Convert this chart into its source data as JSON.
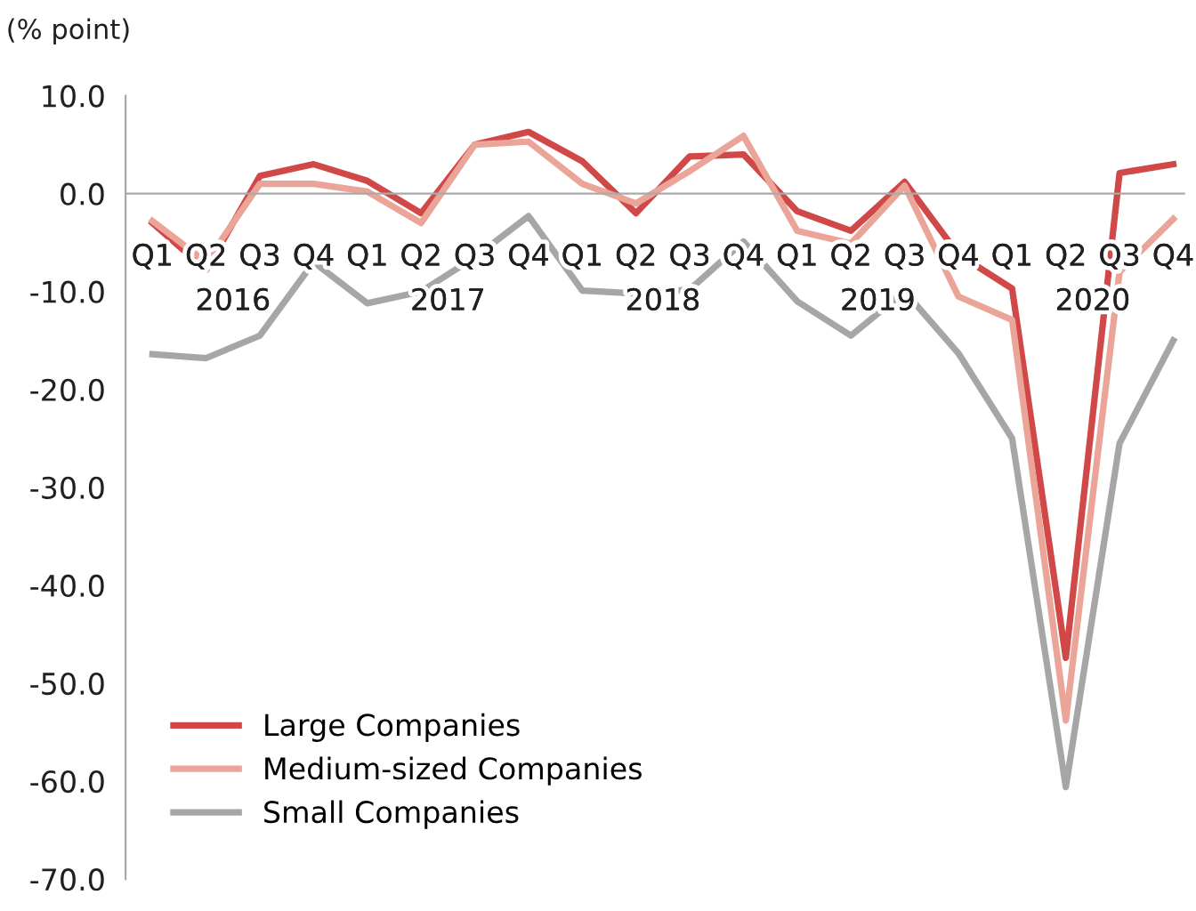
{
  "chart_data": {
    "type": "line",
    "ylabel": "(% point)",
    "categories": [
      "Q1",
      "Q2",
      "Q3",
      "Q4",
      "Q1",
      "Q2",
      "Q3",
      "Q4",
      "Q1",
      "Q2",
      "Q3",
      "Q4",
      "Q1",
      "Q2",
      "Q3",
      "Q4",
      "Q1",
      "Q2",
      "Q3",
      "Q4"
    ],
    "annotations": [
      "2016",
      "2017",
      "2018",
      "2019",
      "2020"
    ],
    "series": [
      {
        "name": "Large Companies",
        "color": "#d04848",
        "values": [
          -3.0,
          -7.8,
          1.8,
          3.0,
          1.3,
          -2.0,
          5.0,
          6.3,
          3.3,
          -2.0,
          3.8,
          4.0,
          -1.8,
          -3.8,
          1.2,
          -6.2,
          -9.7,
          -47.4,
          2.1,
          3.0
        ]
      },
      {
        "name": "Medium-sized Companies",
        "color": "#eba498",
        "values": [
          -2.8,
          -7.0,
          1.0,
          1.0,
          0.2,
          -3.0,
          5.0,
          5.3,
          1.0,
          -1.0,
          2.3,
          5.9,
          -3.8,
          -5.1,
          0.8,
          -10.5,
          -12.9,
          -53.8,
          -8.0,
          -2.6
        ]
      },
      {
        "name": "Small Companies",
        "color": "#a6a6a6",
        "values": [
          -16.4,
          -16.8,
          -14.5,
          -7.0,
          -11.2,
          -10.0,
          -6.5,
          -2.3,
          -9.9,
          -10.2,
          -9.8,
          -4.9,
          -11.0,
          -14.5,
          -10.0,
          -16.3,
          -25.0,
          -60.6,
          -25.5,
          -15.0
        ]
      }
    ],
    "ylim": [
      -70,
      10
    ],
    "yticks": [
      {
        "value": -70,
        "label": "-70.0"
      },
      {
        "value": -60,
        "label": "-60.0"
      },
      {
        "value": -50,
        "label": "-50.0"
      },
      {
        "value": -40,
        "label": "-40.0"
      },
      {
        "value": -30,
        "label": "-30.0"
      },
      {
        "value": -20,
        "label": "-20.0"
      },
      {
        "value": -10,
        "label": "-10.0"
      },
      {
        "value": 0,
        "label": "0.0"
      },
      {
        "value": 10,
        "label": "10.0"
      }
    ],
    "grid": false,
    "legend": "bottom left",
    "marker": "none",
    "line_style": "solid"
  }
}
